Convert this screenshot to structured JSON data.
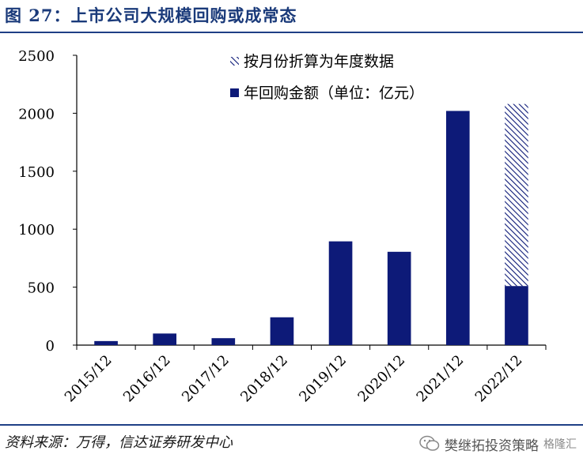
{
  "header": {
    "title": "图 27：上市公司大规模回购或成常态"
  },
  "footer": {
    "source": "资料来源：万得，信达证券研发中心"
  },
  "watermark": {
    "text": "樊继拓投资策略",
    "logo": "格隆汇"
  },
  "colors": {
    "bar": "#0d1a78",
    "hatch": "#0d1a78",
    "rule": "#1f3f86"
  },
  "chart_data": {
    "type": "bar",
    "categories": [
      "2015/12",
      "2016/12",
      "2017/12",
      "2018/12",
      "2019/12",
      "2020/12",
      "2021/12",
      "2022/12"
    ],
    "series": [
      {
        "name": "年回购金额（单位：亿元）",
        "values": [
          35,
          100,
          60,
          240,
          895,
          805,
          2020,
          510
        ],
        "pattern": "solid"
      },
      {
        "name": "按月份折算为年度数据",
        "values": [
          0,
          0,
          0,
          0,
          0,
          0,
          0,
          1570
        ],
        "pattern": "hatched"
      }
    ],
    "stacked": true,
    "ylim": [
      0,
      2500
    ],
    "yticks": [
      "0",
      "500",
      "1000",
      "1500",
      "2000",
      "2500"
    ],
    "ytick_values": [
      0,
      500,
      1000,
      1500,
      2000,
      2500
    ],
    "legend_position": "top-right",
    "grid": false
  }
}
